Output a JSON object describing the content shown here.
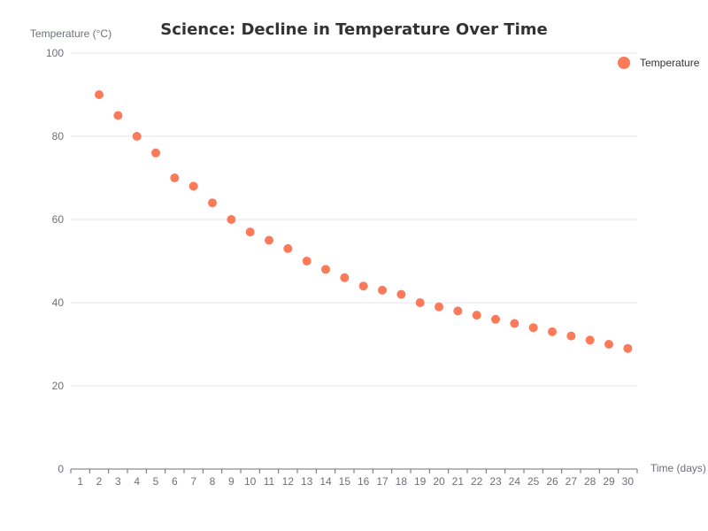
{
  "chart_data": {
    "type": "scatter",
    "title": "Science: Decline in Temperature Over Time",
    "xlabel": "Time (days)",
    "ylabel": "Temperature (°C)",
    "x_categories": [
      "1",
      "2",
      "3",
      "4",
      "5",
      "6",
      "7",
      "8",
      "9",
      "10",
      "11",
      "12",
      "13",
      "14",
      "15",
      "16",
      "17",
      "18",
      "19",
      "20",
      "21",
      "22",
      "23",
      "24",
      "25",
      "26",
      "27",
      "28",
      "29",
      "30"
    ],
    "y_ticks": [
      "0",
      "20",
      "40",
      "60",
      "80",
      "100"
    ],
    "ylim": [
      0,
      100
    ],
    "grid": "horizontal",
    "legend_position": "top-right",
    "series": [
      {
        "name": "Temperature",
        "color": "#fb7a5a",
        "points": [
          {
            "x": 2,
            "y": 90
          },
          {
            "x": 3,
            "y": 85
          },
          {
            "x": 4,
            "y": 80
          },
          {
            "x": 5,
            "y": 76
          },
          {
            "x": 6,
            "y": 70
          },
          {
            "x": 7,
            "y": 68
          },
          {
            "x": 8,
            "y": 64
          },
          {
            "x": 9,
            "y": 60
          },
          {
            "x": 10,
            "y": 57
          },
          {
            "x": 11,
            "y": 55
          },
          {
            "x": 12,
            "y": 53
          },
          {
            "x": 13,
            "y": 50
          },
          {
            "x": 14,
            "y": 48
          },
          {
            "x": 15,
            "y": 46
          },
          {
            "x": 16,
            "y": 44
          },
          {
            "x": 17,
            "y": 43
          },
          {
            "x": 18,
            "y": 42
          },
          {
            "x": 19,
            "y": 40
          },
          {
            "x": 20,
            "y": 39
          },
          {
            "x": 21,
            "y": 38
          },
          {
            "x": 22,
            "y": 37
          },
          {
            "x": 23,
            "y": 36
          },
          {
            "x": 24,
            "y": 35
          },
          {
            "x": 25,
            "y": 34
          },
          {
            "x": 26,
            "y": 33
          },
          {
            "x": 27,
            "y": 32
          },
          {
            "x": 28,
            "y": 31
          },
          {
            "x": 29,
            "y": 30
          },
          {
            "x": 30,
            "y": 29
          }
        ]
      }
    ]
  }
}
